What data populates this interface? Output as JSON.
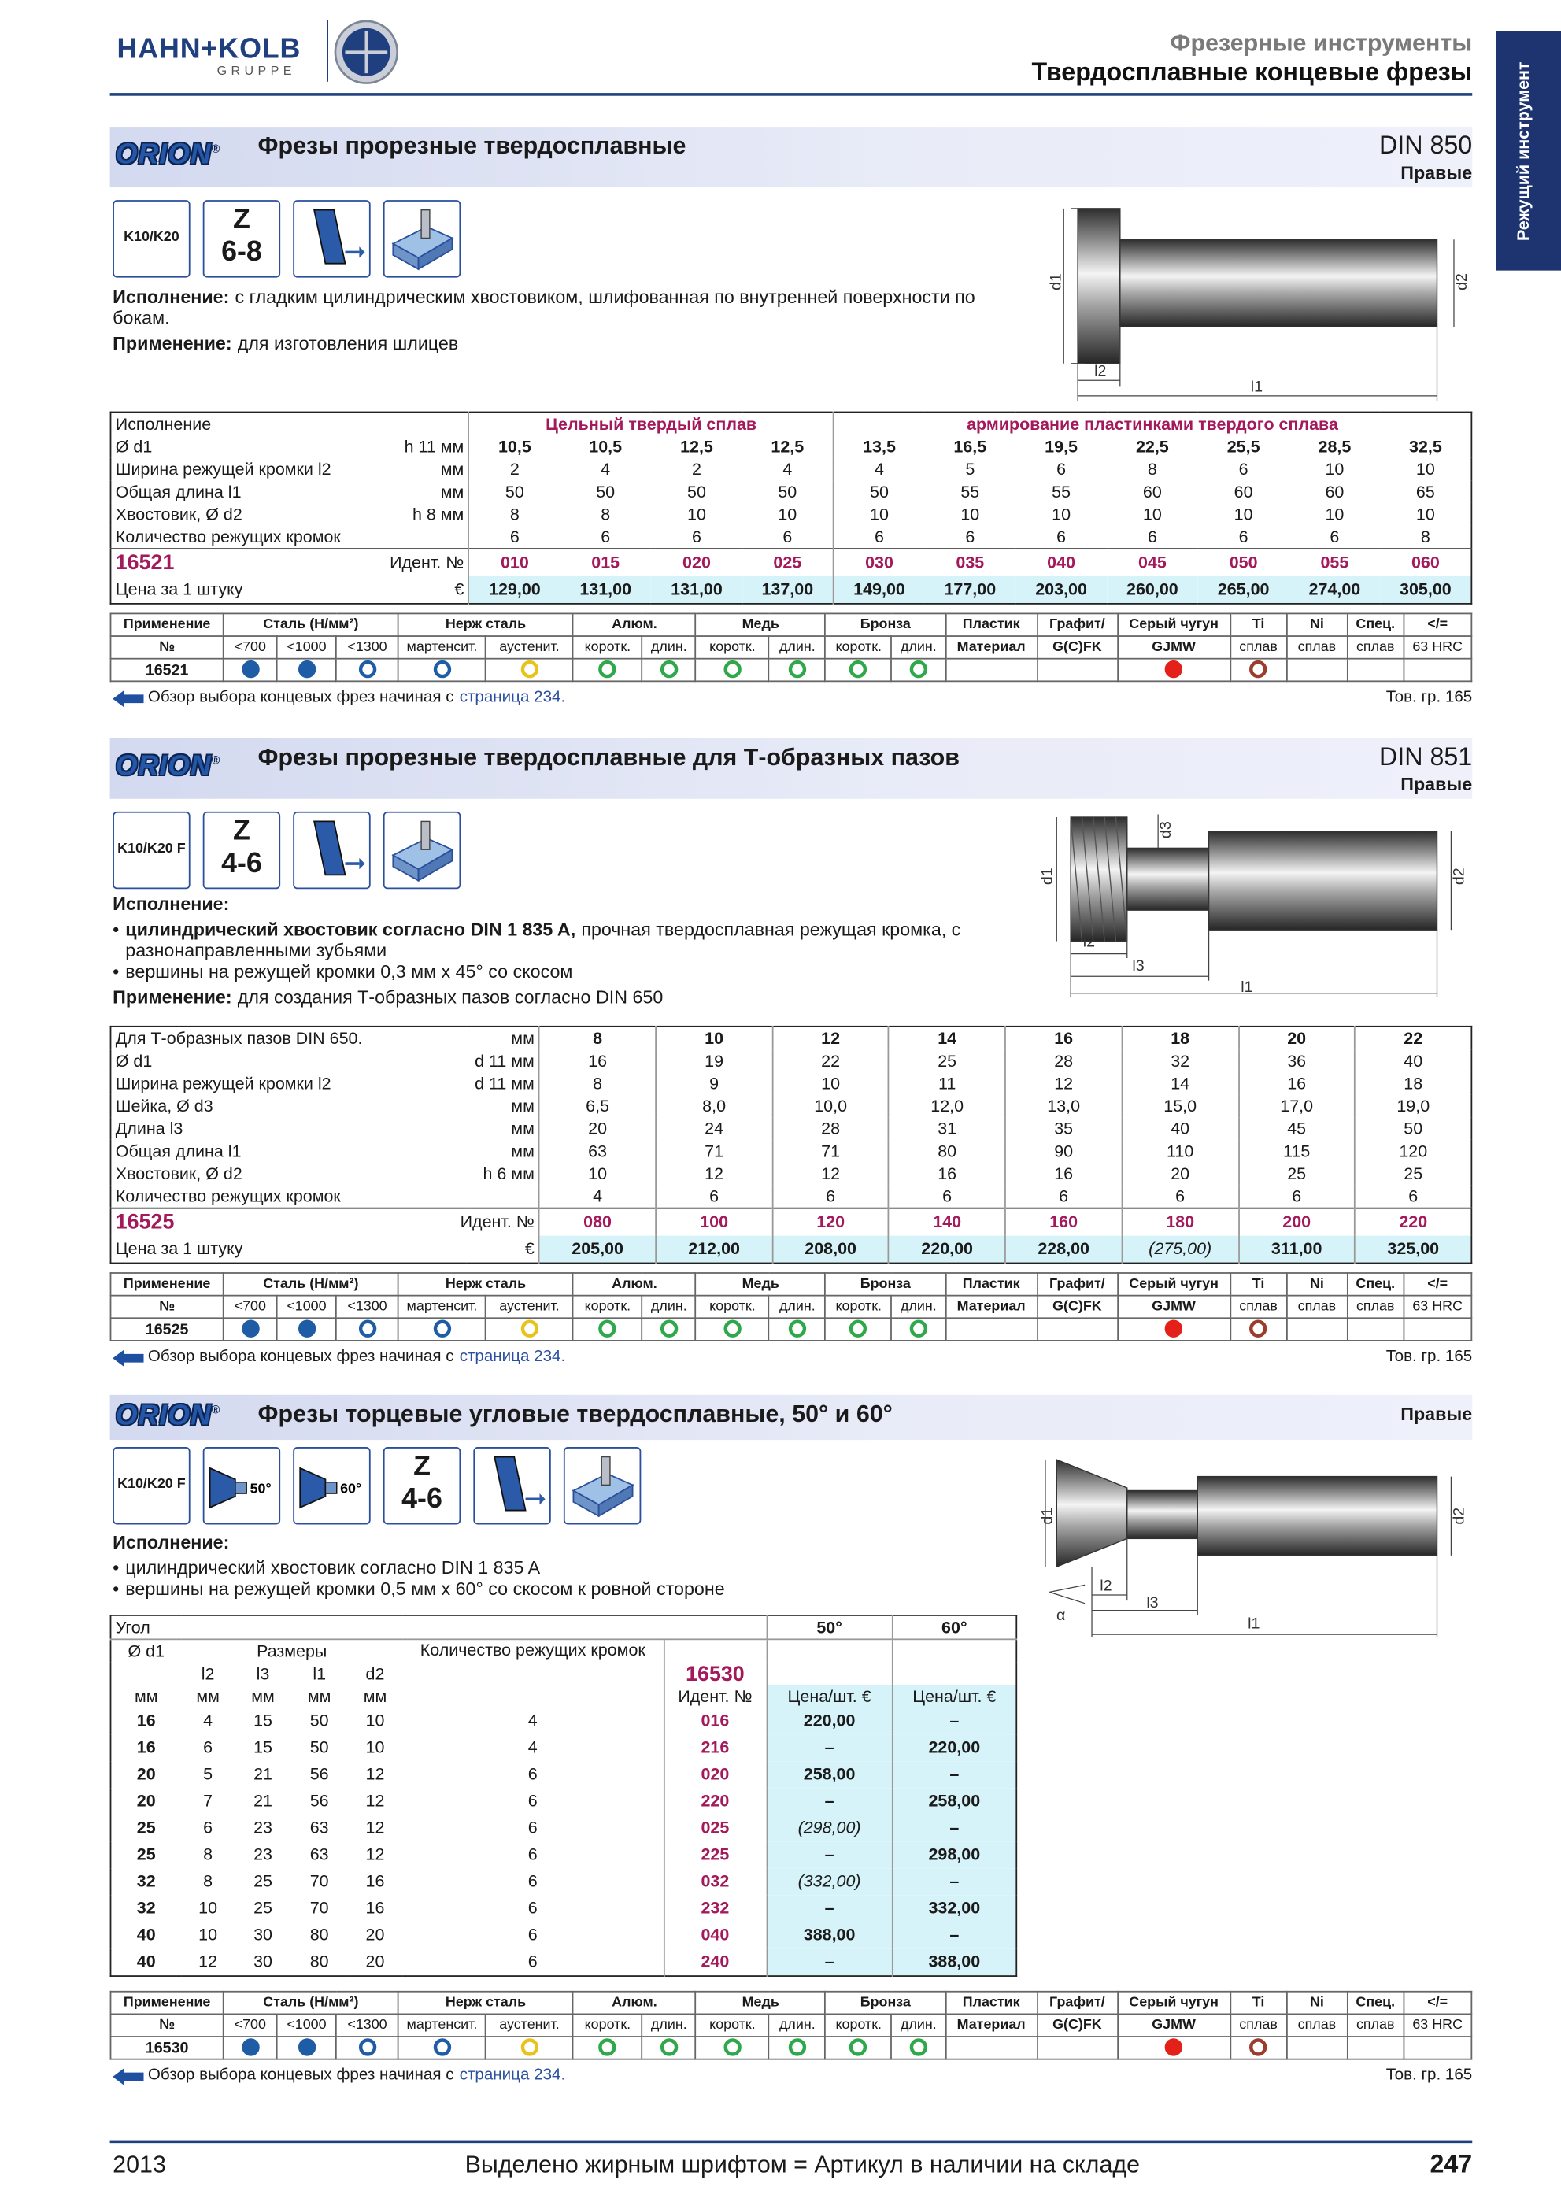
{
  "header": {
    "brand": "HAHN+KOLB",
    "brand_sub": "GRUPPE",
    "category": "Фрезерные инструменты",
    "title": "Твердосплавные концевые фрезы",
    "side_tab": "Режущий инструмент"
  },
  "logo": "ORION",
  "logo_mark": "®",
  "application": {
    "groups": [
      "Применение",
      "Сталь (Н/мм²)",
      "Нерж сталь",
      "Алюм.",
      "Медь",
      "Бронза",
      "Пластик",
      "Графит/",
      "Серый чугун",
      "Ti",
      "Ni",
      "Спец.",
      "</="
    ],
    "subheads": [
      "№",
      "<700",
      "<1000",
      "<1300",
      "мартенсит.",
      "аустенит.",
      "коротк.",
      "длин.",
      "коротк.",
      "длин.",
      "коротк.",
      "длин.",
      "Материал",
      "G(C)FK",
      "GJMW",
      "сплав",
      "сплав",
      "сплав",
      "63 HRC"
    ],
    "marks": [
      {
        "filled": true,
        "color": "#1e5da5"
      },
      {
        "filled": true,
        "color": "#1e5da5"
      },
      {
        "filled": false,
        "color": "#1e5da5"
      },
      {
        "filled": false,
        "color": "#1e5da5"
      },
      {
        "filled": false,
        "color": "#e8c31c"
      },
      {
        "filled": false,
        "color": "#2ea84a"
      },
      {
        "filled": false,
        "color": "#2ea84a"
      },
      {
        "filled": false,
        "color": "#2ea84a"
      },
      {
        "filled": false,
        "color": "#2ea84a"
      },
      {
        "filled": false,
        "color": "#2ea84a"
      },
      {
        "filled": false,
        "color": "#2ea84a"
      },
      null,
      null,
      {
        "filled": true,
        "color": "#e32119"
      },
      {
        "filled": false,
        "color": "#9a3d2c"
      },
      null,
      null,
      null
    ]
  },
  "overview": {
    "text": "Обзор выбора концевых фрез начиная с",
    "link": "страница 234.",
    "group": "Тов. гр. 165"
  },
  "sections": [
    {
      "title": "Фрезы прорезные твердосплавные",
      "din": "DIN 850",
      "hand": "Правые",
      "badges": {
        "grade": "K10/K20",
        "z": "Z",
        "teeth": "6-8"
      },
      "description": {
        "execution_label": "Исполнение:",
        "execution": "с гладким цилиндрическим хвостовиком, шлифованная по внутренней поверхности по бокам.",
        "application_label": "Применение:",
        "application": "для изготовления шлицев"
      },
      "drawing_labels": [
        "d1",
        "d2",
        "l2",
        "l1"
      ],
      "table": {
        "head": {
          "label": "Исполнение",
          "groups": [
            "Цельный твердый сплав",
            "армирование пластинками твердого сплава"
          ]
        },
        "rows": [
          {
            "label": "Ø d1",
            "unit": "h 11 мм",
            "values": [
              "10,5",
              "10,5",
              "12,5",
              "12,5",
              "13,5",
              "16,5",
              "19,5",
              "22,5",
              "25,5",
              "28,5",
              "32,5"
            ]
          },
          {
            "label": "Ширина режущей кромки l2",
            "unit": "мм",
            "values": [
              "2",
              "4",
              "2",
              "4",
              "4",
              "5",
              "6",
              "8",
              "6",
              "10",
              "10"
            ]
          },
          {
            "label": "Общая длина l1",
            "unit": "мм",
            "values": [
              "50",
              "50",
              "50",
              "50",
              "50",
              "55",
              "55",
              "60",
              "60",
              "60",
              "65"
            ]
          },
          {
            "label": "Хвостовик, Ø d2",
            "unit": "h 8 мм",
            "values": [
              "8",
              "8",
              "10",
              "10",
              "10",
              "10",
              "10",
              "10",
              "10",
              "10",
              "10"
            ]
          },
          {
            "label": "Количество режущих кромок",
            "values": [
              "6",
              "6",
              "6",
              "6",
              "6",
              "6",
              "6",
              "6",
              "6",
              "6",
              "8"
            ]
          }
        ],
        "article": "16521",
        "id_label": "Идент. №",
        "ids": [
          "010",
          "015",
          "020",
          "025",
          "030",
          "035",
          "040",
          "045",
          "050",
          "055",
          "060"
        ],
        "price_label": "Цена за 1 штуку",
        "currency": "€",
        "prices": [
          "129,00",
          "131,00",
          "131,00",
          "137,00",
          "149,00",
          "177,00",
          "203,00",
          "260,00",
          "265,00",
          "274,00",
          "305,00"
        ]
      }
    },
    {
      "title": "Фрезы прорезные твердосплавные для Т-образных пазов",
      "din": "DIN 851",
      "hand": "Правые",
      "badges": {
        "grade": "K10/K20 F",
        "z": "Z",
        "teeth": "4-6"
      },
      "description": {
        "execution_label": "Исполнение:",
        "bullets": [
          {
            "bold": "цилиндрический хвостовик согласно DIN 1 835 A,",
            "text": "прочная твердосплавная режущая кромка, с разнонаправленными зубьями"
          },
          {
            "text": "вершины на режущей кромки 0,3 мм x 45° со скосом"
          }
        ],
        "application_label": "Применение:",
        "application": "для создания Т-образных пазов согласно DIN 650"
      },
      "drawing_labels": [
        "d3",
        "d1",
        "d2",
        "l2",
        "l3",
        "l1"
      ],
      "table": {
        "rows": [
          {
            "label": "Для Т-образных пазов DIN 650.",
            "unit": "мм",
            "values": [
              "8",
              "10",
              "12",
              "14",
              "16",
              "18",
              "20",
              "22"
            ]
          },
          {
            "label": "Ø d1",
            "unit": "d 11 мм",
            "values": [
              "16",
              "19",
              "22",
              "25",
              "28",
              "32",
              "36",
              "40"
            ]
          },
          {
            "label": "Ширина режущей кромки l2",
            "unit": "d 11 мм",
            "values": [
              "8",
              "9",
              "10",
              "11",
              "12",
              "14",
              "16",
              "18"
            ]
          },
          {
            "label": "Шейка, Ø d3",
            "unit": "мм",
            "values": [
              "6,5",
              "8,0",
              "10,0",
              "12,0",
              "13,0",
              "15,0",
              "17,0",
              "19,0"
            ]
          },
          {
            "label": "Длина l3",
            "unit": "мм",
            "values": [
              "20",
              "24",
              "28",
              "31",
              "35",
              "40",
              "45",
              "50"
            ]
          },
          {
            "label": "Общая длина l1",
            "unit": "мм",
            "values": [
              "63",
              "71",
              "71",
              "80",
              "90",
              "110",
              "115",
              "120"
            ]
          },
          {
            "label": "Хвостовик, Ø d2",
            "unit": "h 6 мм",
            "values": [
              "10",
              "12",
              "12",
              "16",
              "16",
              "20",
              "25",
              "25"
            ]
          },
          {
            "label": "Количество режущих кромок",
            "values": [
              "4",
              "6",
              "6",
              "6",
              "6",
              "6",
              "6",
              "6"
            ]
          }
        ],
        "article": "16525",
        "id_label": "Идент. №",
        "ids": [
          "080",
          "100",
          "120",
          "140",
          "160",
          "180",
          "200",
          "220"
        ],
        "price_label": "Цена за 1 штуку",
        "currency": "€",
        "prices": [
          "205,00",
          "212,00",
          "208,00",
          "220,00",
          "228,00",
          "(275,00)",
          "311,00",
          "325,00"
        ]
      }
    },
    {
      "title": "Фрезы торцевые угловые твердосплавные, 50° и 60°",
      "hand": "Правые",
      "badges": {
        "grade": "K10/K20 F",
        "angles": [
          "50°",
          "60°"
        ],
        "z": "Z",
        "teeth": "4-6"
      },
      "description": {
        "execution_label": "Исполнение:",
        "bullets": [
          {
            "text": "цилиндрический хвостовик согласно DIN 1 835 A"
          },
          {
            "text": "вершины на режущей кромки 0,5 мм x 60° со скосом к ровной стороне"
          }
        ]
      },
      "drawing_labels": [
        "d1",
        "d2",
        "l2",
        "l3",
        "l1",
        "α"
      ],
      "table": {
        "angle_label": "Угол",
        "angles": [
          "50°",
          "60°"
        ],
        "d1_label": "Ø d1",
        "dims_label": "Размеры",
        "teeth_label": "Количество режущих кромок",
        "article": "16530",
        "dims": [
          "l2",
          "l3",
          "l1",
          "d2"
        ],
        "unit": "мм",
        "id_label": "Идент. №",
        "price_label": "Цена/шт. €",
        "rows": [
          [
            "16",
            "4",
            "15",
            "50",
            "10",
            "4",
            "016",
            "220,00",
            "–"
          ],
          [
            "16",
            "6",
            "15",
            "50",
            "10",
            "4",
            "216",
            "–",
            "220,00"
          ],
          [
            "20",
            "5",
            "21",
            "56",
            "12",
            "6",
            "020",
            "258,00",
            "–"
          ],
          [
            "20",
            "7",
            "21",
            "56",
            "12",
            "6",
            "220",
            "–",
            "258,00"
          ],
          [
            "25",
            "6",
            "23",
            "63",
            "12",
            "6",
            "025",
            "(298,00)",
            "–"
          ],
          [
            "25",
            "8",
            "23",
            "63",
            "12",
            "6",
            "225",
            "–",
            "298,00"
          ],
          [
            "32",
            "8",
            "25",
            "70",
            "16",
            "6",
            "032",
            "(332,00)",
            "–"
          ],
          [
            "32",
            "10",
            "25",
            "70",
            "16",
            "6",
            "232",
            "–",
            "332,00"
          ],
          [
            "40",
            "10",
            "30",
            "80",
            "20",
            "6",
            "040",
            "388,00",
            "–"
          ],
          [
            "40",
            "12",
            "30",
            "80",
            "20",
            "6",
            "240",
            "–",
            "388,00"
          ]
        ]
      }
    }
  ],
  "footer": {
    "year": "2013",
    "note": "Выделено жирным шрифтом = Артикул в наличии на складе",
    "page": "247"
  }
}
